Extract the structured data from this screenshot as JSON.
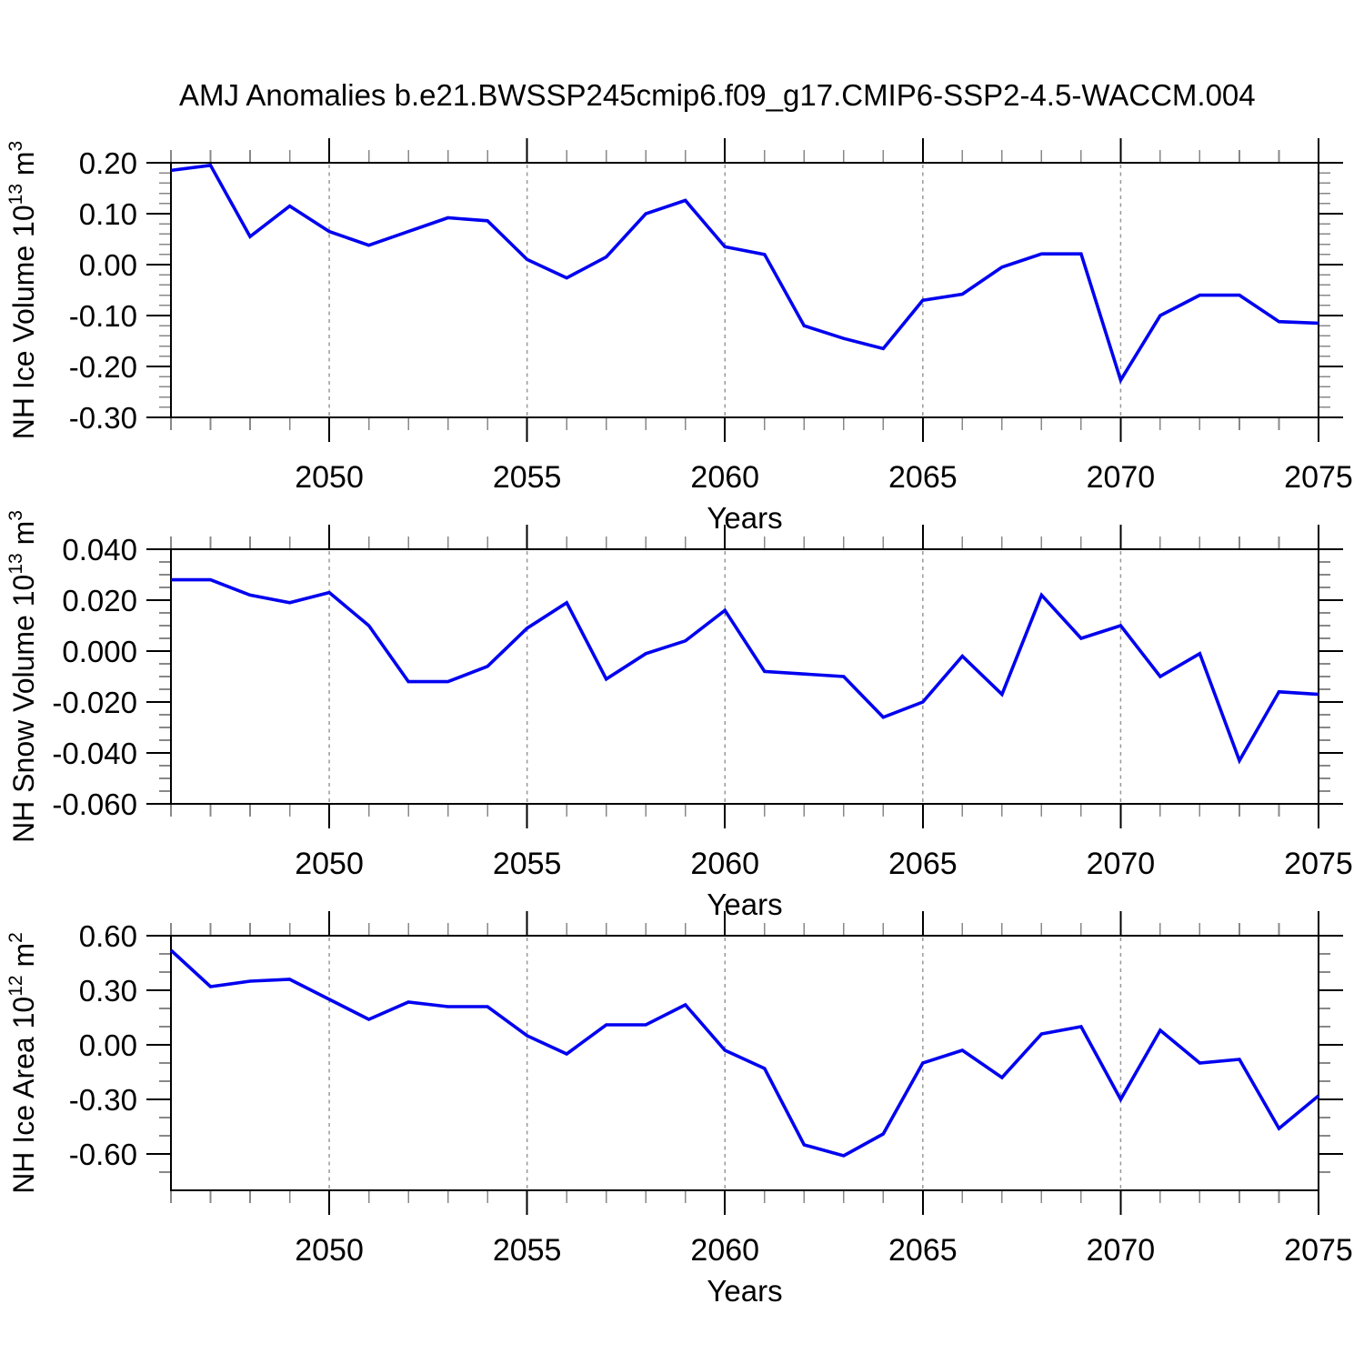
{
  "chart_data": {
    "type": "line",
    "title": "AMJ Anomalies b.e21.BWSSP245cmip6.f09_g17.CMIP6-SSP2-4.5-WACCM.004",
    "xlabel": "Years",
    "xlim": [
      2046,
      2075
    ],
    "x": [
      2046,
      2047,
      2048,
      2049,
      2050,
      2051,
      2052,
      2053,
      2054,
      2055,
      2056,
      2057,
      2058,
      2059,
      2060,
      2061,
      2062,
      2063,
      2064,
      2065,
      2066,
      2067,
      2068,
      2069,
      2070,
      2071,
      2072,
      2073,
      2074,
      2075
    ],
    "x_major_ticks": [
      2050,
      2055,
      2060,
      2065,
      2070,
      2075
    ],
    "x_tick_labels": [
      "2050",
      "2055",
      "2060",
      "2065",
      "2070",
      "2075"
    ],
    "x_gridlines": [
      2050,
      2055,
      2060,
      2065,
      2070
    ],
    "grid": "vertical-dashed",
    "legend": "none",
    "line_color": "#0000F0",
    "gridline_color": "#999999",
    "major_tick_color": "#000000",
    "minor_tick_color": "#888888",
    "panels": [
      {
        "id": "nh-ice-volume",
        "ylabel": "NH Ice Volume 10^13 m^3",
        "ylabel_parts": {
          "prefix": "NH Ice Volume 10",
          "exponent": "13",
          "unit": "m",
          "unit_exponent": "3"
        },
        "ylim": [
          0.2,
          -0.3
        ],
        "y_major_ticks": [
          0.2,
          0.1,
          0.0,
          -0.1,
          -0.2,
          -0.3
        ],
        "y_tick_labels": [
          "0.20",
          "0.10",
          "0.00",
          "-0.10",
          "-0.20",
          "-0.30"
        ],
        "y_minor_step": 0.02,
        "values": [
          0.185,
          0.195,
          0.055,
          0.115,
          0.065,
          0.038,
          0.065,
          0.092,
          0.086,
          0.01,
          -0.026,
          0.015,
          0.1,
          0.126,
          0.035,
          0.02,
          -0.12,
          -0.145,
          -0.165,
          -0.07,
          -0.058,
          -0.005,
          0.021,
          0.021,
          -0.227,
          -0.1,
          -0.06,
          -0.06,
          -0.112,
          -0.115
        ]
      },
      {
        "id": "nh-snow-volume",
        "ylabel": "NH Snow Volume 10^13 m^3",
        "ylabel_parts": {
          "prefix": "NH Snow Volume 10",
          "exponent": "13",
          "unit": "m",
          "unit_exponent": "3"
        },
        "ylim": [
          0.04,
          -0.06
        ],
        "y_major_ticks": [
          0.04,
          0.02,
          0.0,
          -0.02,
          -0.04,
          -0.06
        ],
        "y_tick_labels": [
          "0.040",
          "0.020",
          "0.000",
          "-0.020",
          "-0.040",
          "-0.060"
        ],
        "y_minor_step": 0.005,
        "values": [
          0.028,
          0.028,
          0.022,
          0.019,
          0.023,
          0.01,
          -0.012,
          -0.012,
          -0.006,
          0.009,
          0.019,
          -0.011,
          -0.001,
          0.004,
          0.016,
          -0.008,
          -0.009,
          -0.01,
          -0.026,
          -0.02,
          -0.002,
          -0.017,
          0.022,
          0.005,
          0.01,
          -0.01,
          -0.001,
          -0.043,
          -0.016,
          -0.017
        ]
      },
      {
        "id": "nh-ice-area",
        "ylabel": "NH Ice Area 10^12 m^2",
        "ylabel_parts": {
          "prefix": "NH Ice Area 10",
          "exponent": "12",
          "unit": "m",
          "unit_exponent": "2"
        },
        "ylim": [
          0.6,
          -0.8
        ],
        "y_major_ticks": [
          0.6,
          0.3,
          0.0,
          -0.3,
          -0.6
        ],
        "y_tick_labels": [
          "0.60",
          "0.30",
          "0.00",
          "-0.30",
          "-0.60"
        ],
        "y_minor_step": 0.1,
        "values": [
          0.52,
          0.32,
          0.35,
          0.36,
          0.25,
          0.14,
          0.235,
          0.21,
          0.21,
          0.05,
          -0.05,
          0.11,
          0.11,
          0.22,
          -0.03,
          -0.13,
          -0.55,
          -0.61,
          -0.49,
          -0.1,
          -0.03,
          -0.18,
          0.06,
          0.1,
          -0.3,
          0.08,
          -0.1,
          -0.08,
          -0.46,
          -0.28
        ]
      }
    ]
  }
}
